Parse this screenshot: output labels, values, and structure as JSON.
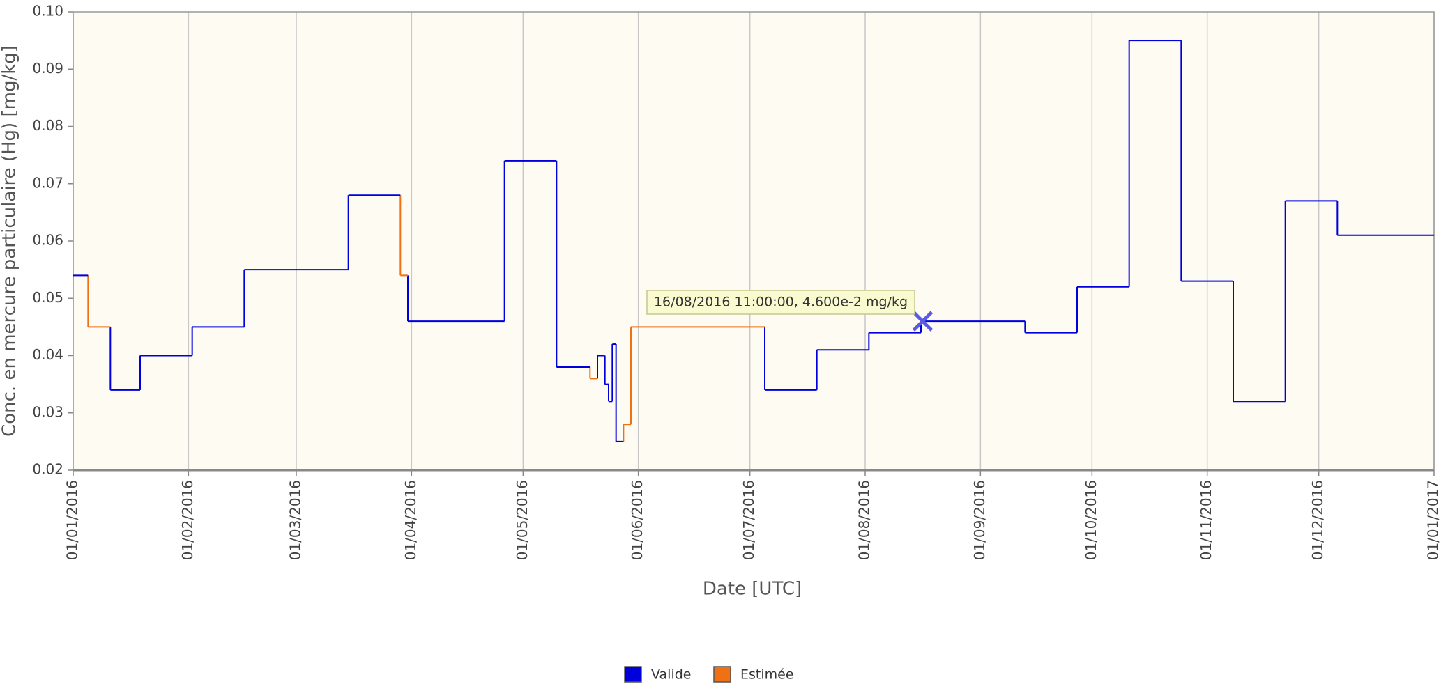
{
  "chart_data": {
    "type": "step",
    "x_label": "Date [UTC]",
    "y_label": "Conc. en mercure particulaire (Hg) [mg/kg]",
    "xlim": [
      "2016-01-01",
      "2017-01-01"
    ],
    "xticks": [
      {
        "value": "2016-01-01",
        "label": "01/01/2016"
      },
      {
        "value": "2016-02-01",
        "label": "01/02/2016"
      },
      {
        "value": "2016-03-01",
        "label": "01/03/2016"
      },
      {
        "value": "2016-04-01",
        "label": "01/04/2016"
      },
      {
        "value": "2016-05-01",
        "label": "01/05/2016"
      },
      {
        "value": "2016-06-01",
        "label": "01/06/2016"
      },
      {
        "value": "2016-07-01",
        "label": "01/07/2016"
      },
      {
        "value": "2016-08-01",
        "label": "01/08/2016"
      },
      {
        "value": "2016-09-01",
        "label": "01/09/2016"
      },
      {
        "value": "2016-10-01",
        "label": "01/10/2016"
      },
      {
        "value": "2016-11-01",
        "label": "01/11/2016"
      },
      {
        "value": "2016-12-01",
        "label": "01/12/2016"
      },
      {
        "value": "2017-01-01",
        "label": "01/01/2017"
      }
    ],
    "ylim": [
      0.02,
      0.1
    ],
    "yticks": [
      0.02,
      0.03,
      0.04,
      0.05,
      0.06,
      0.07,
      0.08,
      0.09,
      {
        "value": 0.1,
        "label": "0.10"
      }
    ],
    "grid": "x",
    "series": [
      {
        "name": "Valide",
        "color": "#0000dd",
        "x": [
          "2016-01-01",
          "2016-01-05",
          "2016-01-11",
          "2016-01-19",
          "2016-02-02",
          "2016-02-16",
          "2016-03-15",
          "2016-03-29",
          "2016-03-31",
          "2016-04-26",
          "2016-05-10",
          "2016-05-19",
          "2016-05-21",
          "2016-05-23",
          "2016-05-24",
          "2016-05-25",
          "2016-05-26",
          "2016-05-28",
          "2016-07-05",
          "2016-07-19",
          "2016-08-02",
          "2016-08-16",
          "2016-09-13",
          "2016-09-27",
          "2016-10-11",
          "2016-10-25",
          "2016-11-08",
          "2016-11-22",
          "2016-12-06",
          "2017-01-01"
        ],
        "values": [
          0.054,
          null,
          0.034,
          0.04,
          0.045,
          0.055,
          0.068,
          null,
          0.046,
          0.074,
          0.038,
          null,
          0.04,
          0.035,
          0.032,
          0.042,
          0.025,
          null,
          0.034,
          0.041,
          0.044,
          0.046,
          0.044,
          0.052,
          0.095,
          0.053,
          0.032,
          0.067,
          0.061,
          null
        ]
      },
      {
        "name": "Estimée",
        "color": "#f07014",
        "x": [
          "2016-01-05",
          "2016-01-11",
          "2016-03-29",
          "2016-03-31",
          "2016-05-19",
          "2016-05-21",
          "2016-05-28",
          "2016-05-30",
          "2016-07-05"
        ],
        "values": [
          0.045,
          null,
          0.054,
          null,
          0.036,
          null,
          0.028,
          0.045,
          null
        ]
      }
    ],
    "annotation": "16/08/2016 11:00:00, 4.600e-2 mg/kg",
    "legend_position": "bottom"
  }
}
